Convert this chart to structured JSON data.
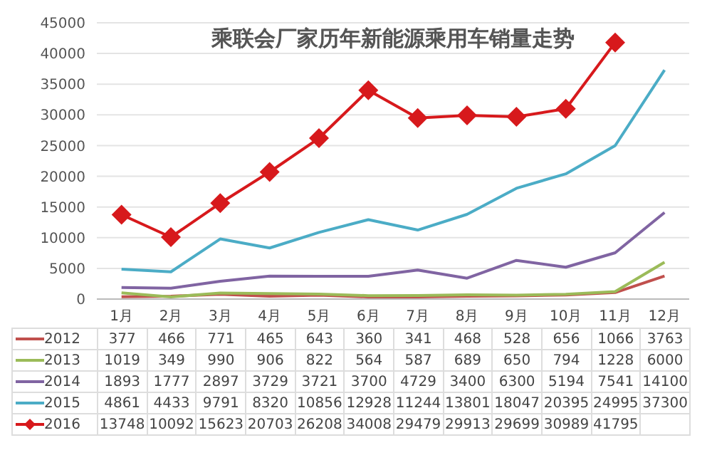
{
  "chart_data": {
    "type": "line",
    "title": "乘联会厂家历年新能源乘用车销量走势",
    "categories": [
      "1月",
      "2月",
      "3月",
      "4月",
      "5月",
      "6月",
      "7月",
      "8月",
      "9月",
      "10月",
      "11月",
      "12月"
    ],
    "series": [
      {
        "name": "2012",
        "color": "#c0504d",
        "marker": "none",
        "values": [
          377,
          466,
          771,
          465,
          643,
          360,
          341,
          468,
          528,
          656,
          1066,
          3763
        ]
      },
      {
        "name": "2013",
        "color": "#9bbb59",
        "marker": "none",
        "values": [
          1019,
          349,
          990,
          906,
          822,
          564,
          587,
          689,
          650,
          794,
          1228,
          6000
        ]
      },
      {
        "name": "2014",
        "color": "#8064a2",
        "marker": "none",
        "values": [
          1893,
          1777,
          2897,
          3729,
          3721,
          3700,
          4729,
          3400,
          6300,
          5194,
          7541,
          14100
        ]
      },
      {
        "name": "2015",
        "color": "#4bacc6",
        "marker": "none",
        "values": [
          4861,
          4433,
          9791,
          8320,
          10856,
          12928,
          11244,
          13801,
          18047,
          20395,
          24995,
          37300
        ]
      },
      {
        "name": "2016",
        "color": "#d7191c",
        "marker": "diamond",
        "values": [
          13748,
          10092,
          15623,
          20703,
          26208,
          34008,
          29479,
          29913,
          29699,
          30989,
          41795,
          null
        ]
      }
    ],
    "ylim": [
      0,
      45000
    ],
    "yticks": [
      0,
      5000,
      10000,
      15000,
      20000,
      25000,
      30000,
      35000,
      40000,
      45000
    ],
    "grid": "y",
    "legend": "bottom",
    "data_labels": true
  }
}
